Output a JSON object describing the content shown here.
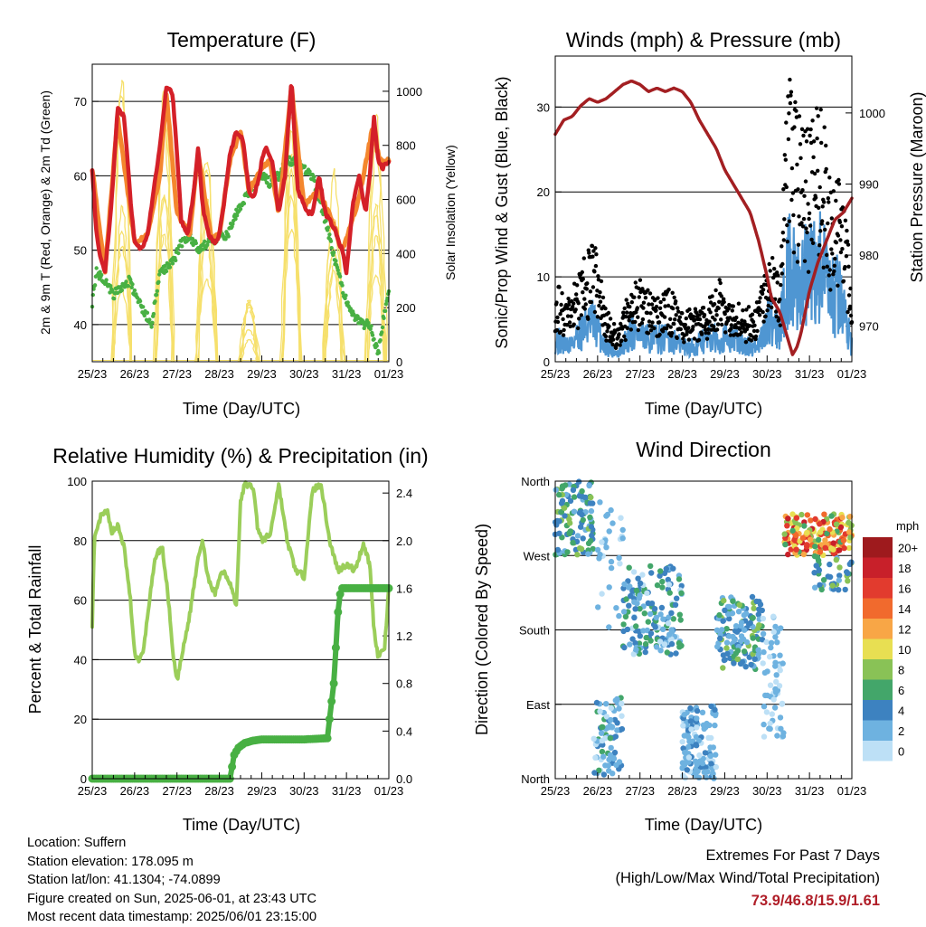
{
  "x_ticks": [
    "25/23",
    "26/23",
    "27/23",
    "28/23",
    "29/23",
    "30/23",
    "31/23",
    "01/23"
  ],
  "colors": {
    "temp_2m": "#d42028",
    "temp_9m": "#f4872e",
    "dewpoint": "#48b043",
    "solar": "#f6e06c",
    "wind": "#4f96d2",
    "gust": "#000000",
    "pressure": "#a31f22",
    "rh": "#9bce5a",
    "precip": "#48b043"
  },
  "panels": {
    "temperature": {
      "title": "Temperature (F)",
      "xlabel": "Time (Day/UTC)",
      "ylabel_left": "2m & 9m T (Red, Orange) & 2m Td (Green)",
      "ylabel_right": "Solar Insolation (Yellow)",
      "yticks_left": [
        "40",
        "50",
        "60",
        "70"
      ],
      "yticks_right": [
        "0",
        "200",
        "400",
        "600",
        "800",
        "1000"
      ]
    },
    "winds": {
      "title": "Winds (mph) & Pressure (mb)",
      "xlabel": "Time (Day/UTC)",
      "ylabel_left": "Sonic/Prop Wind & Gust (Blue, Black)",
      "ylabel_right": "Station Pressure (Maroon)",
      "yticks_left": [
        "0",
        "10",
        "20",
        "30"
      ],
      "yticks_right": [
        "970",
        "980",
        "990",
        "1000"
      ]
    },
    "humidity": {
      "title": "Relative Humidity (%) & Precipitation (in)",
      "xlabel": "Time (Day/UTC)",
      "ylabel_left": "Percent & Total Rainfall",
      "yticks_left": [
        "0",
        "20",
        "40",
        "60",
        "80",
        "100"
      ],
      "yticks_right": [
        "0.0",
        "0.4",
        "0.8",
        "1.2",
        "1.6",
        "2.0",
        "2.4"
      ]
    },
    "direction": {
      "title": "Wind Direction",
      "xlabel": "Time (Day/UTC)",
      "ylabel_left": "Direction (Colored By Speed)",
      "yticks_left": [
        "North",
        "East",
        "South",
        "West",
        "North"
      ],
      "legend_title": "mph",
      "legend_labels": [
        "20+",
        "18",
        "16",
        "14",
        "12",
        "10",
        "8",
        "6",
        "4",
        "2",
        "0"
      ],
      "legend_colors": [
        "#9e1a1d",
        "#c8202a",
        "#e23b2e",
        "#f16a2d",
        "#f8a646",
        "#e8df52",
        "#89c256",
        "#43a66a",
        "#3d82c0",
        "#6eb2e0",
        "#bde0f6"
      ]
    }
  },
  "info": {
    "location": "Location: Suffern",
    "elevation": "Station elevation: 178.095 m",
    "latlon": "Station lat/lon: 41.1304; -74.0899",
    "created": "Figure created on Sun, 2025-06-01, at 23:43 UTC",
    "recent": "Most recent data timestamp: 2025/06/01 23:15:00"
  },
  "extremes": {
    "line1": "Extremes For Past 7 Days",
    "line2": "(High/Low/Max Wind/Total Precipitation)",
    "values": "73.9/46.8/15.9/1.61"
  },
  "chart_data": [
    {
      "type": "line",
      "title": "Temperature (F)",
      "xlabel": "Time (Day/UTC)",
      "ylabel": "2m & 9m T (Red, Orange) & 2m Td (Green)",
      "y2label": "Solar Insolation (Yellow)",
      "xlim": [
        0,
        7
      ],
      "ylim": [
        35,
        75
      ],
      "y2lim": [
        0,
        1100
      ],
      "grid": true,
      "series": [
        {
          "key": "temp_2m",
          "axis": "left",
          "x": [
            0,
            0.1,
            0.2,
            0.3,
            0.45,
            0.6,
            0.75,
            0.9,
            1.0,
            1.15,
            1.3,
            1.45,
            1.6,
            1.75,
            1.9,
            2.0,
            2.1,
            2.25,
            2.4,
            2.5,
            2.6,
            2.75,
            2.9,
            3.0,
            3.1,
            3.25,
            3.4,
            3.55,
            3.7,
            3.8,
            3.95,
            4.0,
            4.1,
            4.25,
            4.4,
            4.55,
            4.7,
            4.85,
            5.0,
            5.1,
            5.2,
            5.35,
            5.5,
            5.7,
            5.9,
            6.0,
            6.15,
            6.3,
            6.45,
            6.55,
            6.65,
            6.75,
            6.85,
            7.0
          ],
          "y": [
            61,
            52,
            49,
            47,
            56,
            69,
            68,
            57,
            51,
            50,
            52,
            58,
            64,
            72,
            71,
            63,
            54,
            52,
            58,
            64,
            56,
            52,
            51,
            52,
            56,
            63,
            66,
            65,
            58,
            57,
            60,
            62,
            64,
            62,
            55,
            60,
            73,
            58,
            56,
            55,
            55,
            60,
            55,
            53,
            50,
            47,
            56,
            60,
            55,
            60,
            68,
            62,
            61,
            62
          ]
        },
        {
          "key": "temp_9m",
          "axis": "left",
          "x": [
            0,
            0.3,
            0.6,
            1.0,
            1.3,
            1.6,
            1.75,
            2.0,
            2.3,
            2.5,
            2.8,
            3.0,
            3.25,
            3.5,
            3.7,
            4.0,
            4.2,
            4.4,
            4.7,
            5.0,
            5.3,
            5.6,
            5.9,
            6.3,
            6.6,
            6.8,
            7.0
          ],
          "y": [
            61,
            47,
            68,
            51,
            52,
            60,
            71,
            55,
            52,
            63,
            52,
            52,
            62,
            66,
            58,
            61,
            62,
            55,
            72,
            56,
            58,
            55,
            50,
            57,
            66,
            62,
            62
          ]
        },
        {
          "key": "dewpoint",
          "axis": "left",
          "x": [
            0,
            0.1,
            0.3,
            0.5,
            0.7,
            0.9,
            1.0,
            1.2,
            1.4,
            1.6,
            1.8,
            1.95,
            2.1,
            2.3,
            2.5,
            2.7,
            2.9,
            3.0,
            3.2,
            3.4,
            3.6,
            3.8,
            4.0,
            4.2,
            4.4,
            4.6,
            4.8,
            5.0,
            5.2,
            5.5,
            5.8,
            6.0,
            6.2,
            6.4,
            6.55,
            6.65,
            6.75,
            6.85,
            7.0
          ],
          "y": [
            43,
            47,
            46,
            44,
            45,
            46,
            44,
            42,
            40,
            47,
            48,
            49,
            51,
            52,
            50,
            51,
            51,
            52,
            52,
            55,
            57,
            59,
            60,
            59,
            60,
            62,
            62,
            61,
            60,
            54,
            47,
            43,
            41,
            40,
            40,
            38,
            36,
            40,
            45
          ]
        },
        {
          "key": "solar",
          "axis": "right",
          "peaks_x": [
            0.7,
            1.7,
            2.7,
            3.7,
            4.7,
            5.7,
            6.7
          ],
          "peaks_y": [
            1080,
            1020,
            980,
            260,
            1050,
            1000,
            1070
          ]
        }
      ]
    },
    {
      "type": "line",
      "title": "Winds (mph) & Pressure (mb)",
      "xlabel": "Time (Day/UTC)",
      "ylabel": "Sonic/Prop Wind & Gust (Blue, Black)",
      "y2label": "Station Pressure (Maroon)",
      "xlim": [
        0,
        7
      ],
      "ylim": [
        0,
        36
      ],
      "y2lim": [
        965,
        1008
      ],
      "grid": true,
      "series": [
        {
          "key": "pressure",
          "axis": "right",
          "x": [
            0,
            0.2,
            0.4,
            0.6,
            0.8,
            1.0,
            1.2,
            1.4,
            1.6,
            1.8,
            2.0,
            2.2,
            2.4,
            2.6,
            2.8,
            3.0,
            3.2,
            3.4,
            3.6,
            3.8,
            4.0,
            4.2,
            4.4,
            4.6,
            4.8,
            5.0,
            5.1,
            5.3,
            5.5,
            5.6,
            5.7,
            5.8,
            5.9,
            6.0,
            6.2,
            6.4,
            6.6,
            6.8,
            7.0
          ],
          "y": [
            997,
            999,
            999.5,
            1001,
            1002,
            1001.5,
            1002,
            1003,
            1004,
            1004.5,
            1004,
            1003,
            1003.5,
            1003,
            1003.5,
            1003,
            1001.5,
            999,
            997,
            995,
            992,
            990,
            988,
            986,
            982,
            977,
            974,
            972,
            968,
            966,
            967,
            969,
            972,
            975,
            979,
            982,
            985,
            986,
            988
          ]
        },
        {
          "key": "wind",
          "axis": "left",
          "x": [
            0,
            0.3,
            0.6,
            0.9,
            1.2,
            1.5,
            1.8,
            2.1,
            2.4,
            2.7,
            3.0,
            3.3,
            3.6,
            3.9,
            4.2,
            4.5,
            4.8,
            5.1,
            5.3,
            5.5,
            5.7,
            5.9,
            6.1,
            6.3,
            6.5,
            6.7,
            6.9,
            7.0
          ],
          "y": [
            3,
            2,
            4,
            5,
            2,
            1,
            4,
            3,
            3,
            3,
            2,
            2,
            3,
            3,
            3,
            2,
            2,
            6,
            4,
            12,
            10,
            11,
            12,
            12,
            8,
            9,
            5,
            2
          ]
        },
        {
          "key": "gust",
          "axis": "left",
          "x": [
            0,
            0.3,
            0.6,
            0.9,
            1.2,
            1.5,
            1.8,
            2.1,
            2.4,
            2.7,
            3.0,
            3.3,
            3.6,
            3.9,
            4.2,
            4.5,
            4.8,
            5.1,
            5.3,
            5.5,
            5.7,
            5.9,
            6.1,
            6.3,
            6.5,
            6.7,
            6.9,
            7.0
          ],
          "y": [
            8,
            6,
            9,
            12,
            5,
            3,
            8,
            8,
            6,
            7,
            5,
            5,
            6,
            8,
            6,
            5,
            6,
            11,
            8,
            28,
            24,
            22,
            24,
            24,
            17,
            18,
            12,
            5
          ]
        }
      ]
    },
    {
      "type": "line",
      "title": "Relative Humidity (%) & Precipitation (in)",
      "xlabel": "Time (Day/UTC)",
      "ylabel": "Percent & Total Rainfall",
      "xlim": [
        0,
        7
      ],
      "ylim": [
        0,
        100
      ],
      "y2lim": [
        0,
        2.5
      ],
      "grid": true,
      "series": [
        {
          "key": "rh",
          "axis": "left",
          "x": [
            0,
            0.05,
            0.2,
            0.35,
            0.45,
            0.6,
            0.75,
            0.9,
            1.0,
            1.1,
            1.2,
            1.35,
            1.5,
            1.65,
            1.8,
            1.9,
            2.0,
            2.1,
            2.3,
            2.5,
            2.6,
            2.75,
            2.9,
            3.0,
            3.1,
            3.25,
            3.4,
            3.5,
            3.6,
            3.8,
            3.9,
            4.0,
            4.2,
            4.4,
            4.6,
            4.8,
            5.0,
            5.2,
            5.4,
            5.6,
            5.8,
            6.0,
            6.2,
            6.4,
            6.55,
            6.65,
            6.75,
            6.9,
            7.0
          ],
          "y": [
            52,
            80,
            88,
            90,
            83,
            85,
            78,
            60,
            42,
            40,
            42,
            60,
            75,
            78,
            60,
            42,
            33,
            40,
            55,
            75,
            80,
            66,
            62,
            68,
            70,
            66,
            58,
            93,
            99,
            98,
            85,
            80,
            82,
            99,
            80,
            70,
            68,
            97,
            99,
            80,
            70,
            72,
            70,
            79,
            72,
            50,
            41,
            44,
            64
          ]
        },
        {
          "key": "precip",
          "axis": "right",
          "x": [
            0,
            1.0,
            2.0,
            3.0,
            3.25,
            3.35,
            3.45,
            3.6,
            3.8,
            4.0,
            4.5,
            5.0,
            5.55,
            5.6,
            5.7,
            5.75,
            5.8,
            5.85,
            5.9,
            6.0,
            6.5,
            7.0
          ],
          "y": [
            0,
            0,
            0,
            0,
            0,
            0.2,
            0.26,
            0.3,
            0.32,
            0.33,
            0.33,
            0.33,
            0.34,
            0.5,
            0.8,
            1.1,
            1.4,
            1.55,
            1.6,
            1.6,
            1.6,
            1.6
          ]
        }
      ]
    },
    {
      "type": "scatter",
      "title": "Wind Direction",
      "xlabel": "Time (Day/UTC)",
      "ylabel": "Direction (Colored By Speed)",
      "xlim": [
        0,
        7
      ],
      "ylim": [
        0,
        360
      ],
      "grid": true,
      "clusters": [
        {
          "x": [
            0,
            0.9
          ],
          "dir": [
            270,
            360
          ],
          "speed": [
            2,
            8
          ],
          "n": 110
        },
        {
          "x": [
            0.9,
            1.6
          ],
          "dir": [
            0,
            100
          ],
          "speed": [
            0,
            6
          ],
          "n": 80
        },
        {
          "x": [
            1.6,
            3.0
          ],
          "dir": [
            150,
            260
          ],
          "speed": [
            0,
            7
          ],
          "n": 160
        },
        {
          "x": [
            1.0,
            1.6
          ],
          "dir": [
            180,
            340
          ],
          "speed": [
            0,
            3
          ],
          "n": 30
        },
        {
          "x": [
            3.0,
            3.8
          ],
          "dir": [
            0,
            90
          ],
          "speed": [
            0,
            4
          ],
          "n": 120
        },
        {
          "x": [
            3.8,
            4.9
          ],
          "dir": [
            130,
            220
          ],
          "speed": [
            1,
            8
          ],
          "n": 140
        },
        {
          "x": [
            4.9,
            5.4
          ],
          "dir": [
            50,
            200
          ],
          "speed": [
            0,
            3
          ],
          "n": 60
        },
        {
          "x": [
            5.4,
            7.0
          ],
          "dir": [
            270,
            320
          ],
          "speed": [
            6,
            18
          ],
          "n": 170
        },
        {
          "x": [
            6.0,
            7.0
          ],
          "dir": [
            225,
            270
          ],
          "speed": [
            2,
            8
          ],
          "n": 40
        }
      ]
    }
  ]
}
